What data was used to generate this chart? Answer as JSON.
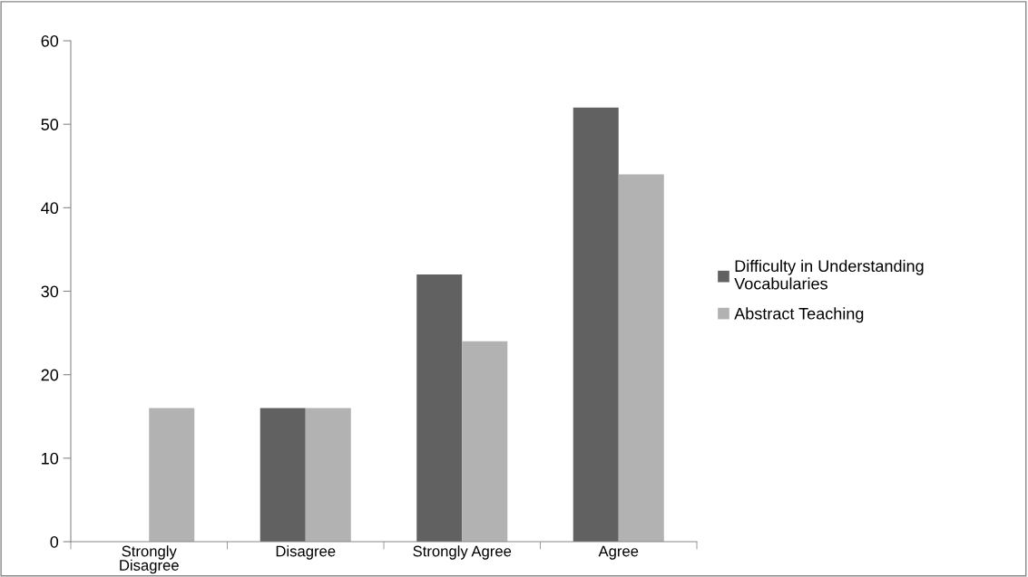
{
  "chart_data": {
    "type": "bar",
    "categories": [
      "Strongly\nDisagree",
      "Disagree",
      "Strongly Agree",
      "Agree"
    ],
    "series": [
      {
        "name": "Difficulty in Understanding\nVocabularies",
        "color": "#616161",
        "values": [
          0,
          16,
          32,
          52
        ]
      },
      {
        "name": "Abstract Teaching",
        "color": "#b2b2b2",
        "values": [
          16,
          16,
          24,
          44
        ]
      }
    ],
    "ylim": [
      0,
      60
    ],
    "yticks": [
      0,
      10,
      20,
      30,
      40,
      50,
      60
    ],
    "grid": false,
    "legend": "right"
  }
}
